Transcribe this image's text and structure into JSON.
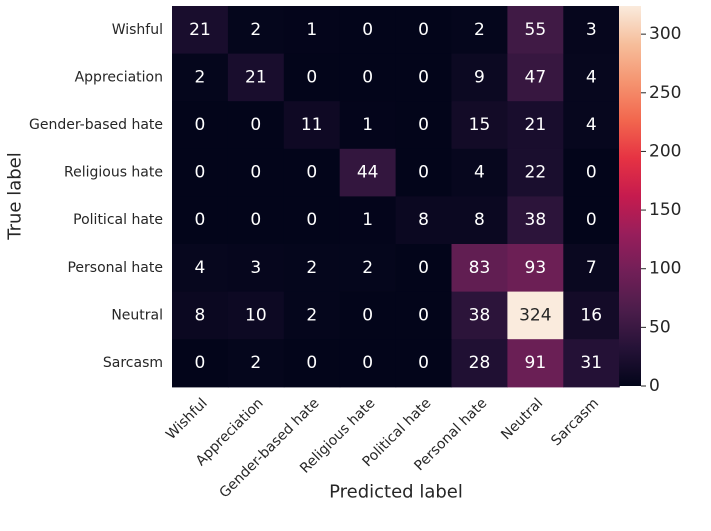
{
  "chart_data": {
    "type": "heatmap",
    "xlabel": "Predicted label",
    "ylabel": "True label",
    "x_categories": [
      "Wishful",
      "Appreciation",
      "Gender-based hate",
      "Religious hate",
      "Political hate",
      "Personal hate",
      "Neutral",
      "Sarcasm"
    ],
    "y_categories": [
      "Wishful",
      "Appreciation",
      "Gender-based hate",
      "Religious hate",
      "Political hate",
      "Personal hate",
      "Neutral",
      "Sarcasm"
    ],
    "values": [
      [
        21,
        2,
        1,
        0,
        0,
        2,
        55,
        3
      ],
      [
        2,
        21,
        0,
        0,
        0,
        9,
        47,
        4
      ],
      [
        0,
        0,
        11,
        1,
        0,
        15,
        21,
        4
      ],
      [
        0,
        0,
        0,
        44,
        0,
        4,
        22,
        0
      ],
      [
        0,
        0,
        0,
        1,
        8,
        8,
        38,
        0
      ],
      [
        4,
        3,
        2,
        2,
        0,
        83,
        93,
        7
      ],
      [
        8,
        10,
        2,
        0,
        0,
        38,
        324,
        16
      ],
      [
        0,
        2,
        0,
        0,
        0,
        28,
        91,
        31
      ]
    ],
    "colorbar": {
      "min": 0,
      "max": 324,
      "ticks": [
        0,
        50,
        100,
        150,
        200,
        250,
        300
      ]
    },
    "colormap": "rocket"
  }
}
